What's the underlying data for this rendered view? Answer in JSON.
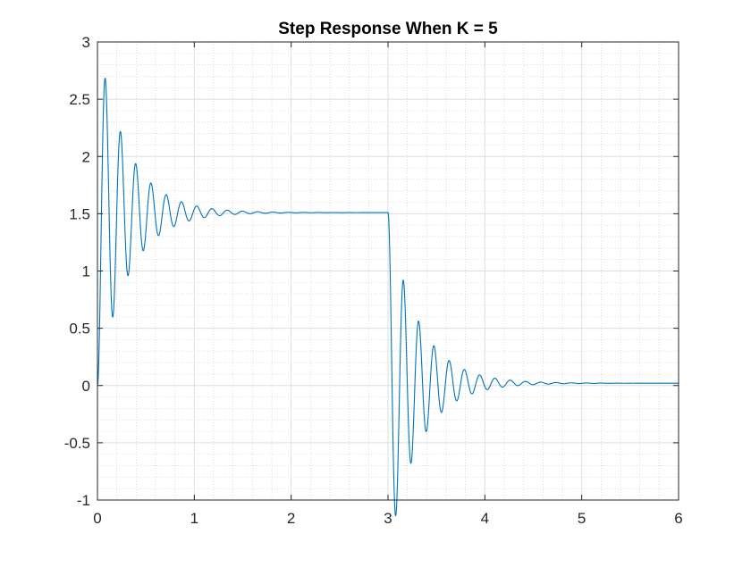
{
  "chart_data": {
    "type": "line",
    "title": "Step Response When K = 5",
    "xlabel": "",
    "ylabel": "",
    "xlim": [
      0,
      6
    ],
    "ylim": [
      -1,
      3
    ],
    "xticks": [
      0,
      1,
      2,
      3,
      4,
      5,
      6
    ],
    "xtick_labels": [
      "0",
      "1",
      "2",
      "3",
      "4",
      "5",
      "6"
    ],
    "yticks": [
      -1,
      -0.5,
      0,
      0.5,
      1,
      1.5,
      2,
      2.5,
      3
    ],
    "ytick_labels": [
      "-1",
      "-0.5",
      "0",
      "0.5",
      "1",
      "1.5",
      "2",
      "2.5",
      "3"
    ],
    "grid": "major and minor",
    "legend": "none",
    "series": [
      {
        "color": "#0072BD",
        "segments": [
          {
            "t_start": 0,
            "t_end": 3,
            "initial": 0,
            "final": 1.51,
            "omega": 40,
            "zeta": 0.08
          },
          {
            "t_start": 3,
            "t_end": 6,
            "initial": 1.51,
            "final": 0.02,
            "omega": 40,
            "zeta": 0.08
          }
        ],
        "peaks": [
          {
            "x": 0.09,
            "y": 2.5
          },
          {
            "x": 0.18,
            "y": 0.88
          },
          {
            "x": 0.25,
            "y": 1.96
          },
          {
            "x": 0.41,
            "y": 1.72
          },
          {
            "x": 0.56,
            "y": 1.6
          },
          {
            "x": 3.08,
            "y": -1.0
          },
          {
            "x": 3.16,
            "y": 0.7
          },
          {
            "x": 3.32,
            "y": 0.32
          },
          {
            "x": 3.47,
            "y": 0.15
          }
        ]
      }
    ]
  }
}
